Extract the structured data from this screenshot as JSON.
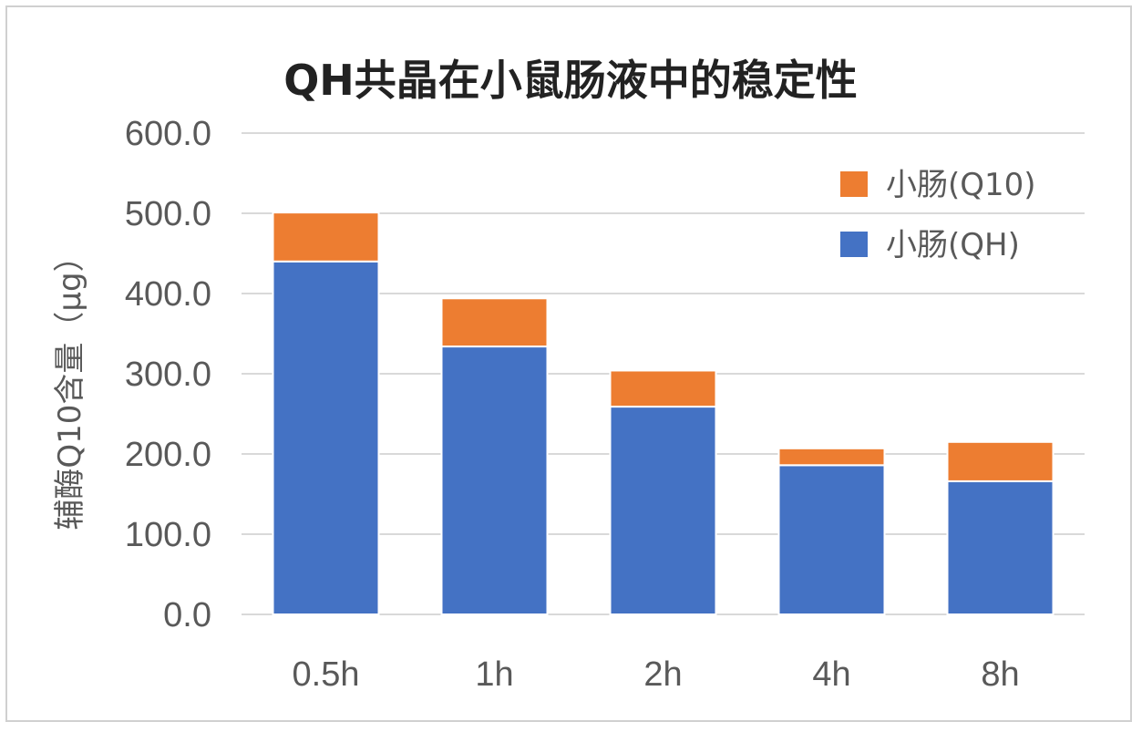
{
  "chart_data": {
    "type": "bar",
    "stacked": true,
    "title": "QH共晶在小鼠肠液中的稳定性",
    "xlabel": "",
    "ylabel": "辅酶Q10含量（μg）",
    "categories": [
      "0.5h",
      "1h",
      "2h",
      "4h",
      "8h"
    ],
    "series": [
      {
        "name": "小肠(QH)",
        "color": "#4472C4",
        "values": [
          440,
          334,
          259,
          186,
          166
        ]
      },
      {
        "name": "小肠(Q10)",
        "color": "#ED7D31",
        "values": [
          61,
          60,
          45,
          21,
          49
        ]
      }
    ],
    "ylim": [
      0,
      600
    ],
    "yticks": [
      "0.0",
      "100.0",
      "200.0",
      "300.0",
      "400.0",
      "500.0",
      "600.0"
    ],
    "grid": true,
    "legend_position": "top-right",
    "legend_order": [
      "小肠(Q10)",
      "小肠(QH)"
    ]
  }
}
